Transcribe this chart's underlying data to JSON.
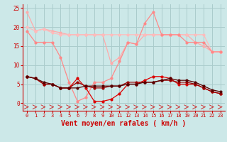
{
  "title": "",
  "xlabel": "Vent moyen/en rafales ( km/h )",
  "hours": [
    0,
    1,
    2,
    3,
    4,
    5,
    6,
    7,
    8,
    9,
    10,
    11,
    12,
    13,
    14,
    15,
    16,
    17,
    18,
    19,
    20,
    21,
    22,
    23
  ],
  "line1": [
    24,
    19,
    19.5,
    19,
    18.5,
    18,
    18,
    18,
    18,
    18,
    10.5,
    12,
    16,
    15.5,
    18,
    18,
    18,
    18,
    18,
    18,
    16,
    15,
    13.5,
    13.5
  ],
  "line2": [
    20,
    19,
    19.5,
    18.5,
    18,
    18,
    18,
    18,
    18,
    18,
    18,
    18,
    18,
    18,
    18,
    18,
    18,
    18,
    18,
    18,
    18,
    18,
    13.5,
    13.5
  ],
  "line3": [
    19,
    16,
    16,
    16,
    12,
    5.5,
    0.5,
    1.5,
    5.5,
    5.5,
    6.5,
    11,
    16,
    15.5,
    21,
    24,
    18,
    18,
    18,
    16,
    16,
    16,
    13.5,
    13.5
  ],
  "line4": [
    7,
    6.5,
    5,
    5,
    4,
    4,
    6.5,
    4,
    0.5,
    0.5,
    1,
    2.5,
    5,
    5,
    6,
    7,
    7,
    6.5,
    5,
    5,
    5,
    4,
    3,
    2.5
  ],
  "line5": [
    7,
    6.5,
    5,
    5,
    4,
    4,
    5.5,
    4.5,
    4,
    4,
    4.5,
    4.5,
    5.5,
    5.5,
    5.5,
    5.5,
    6,
    6,
    5.5,
    5.5,
    5,
    4,
    3,
    2.5
  ],
  "line6": [
    7,
    6.5,
    5.5,
    5,
    4,
    4,
    4,
    4.5,
    4.5,
    4.5,
    4.5,
    4.5,
    5,
    5,
    5.5,
    5.5,
    6,
    6.5,
    6,
    6,
    5.5,
    4.5,
    3.5,
    3
  ],
  "color1": "#ffaaaa",
  "color2": "#ffbbbb",
  "color3": "#ff8888",
  "color4": "#dd0000",
  "color5": "#990000",
  "color6": "#550000",
  "bg_color": "#cce8e8",
  "grid_color": "#aacccc",
  "axis_color": "#cc0000",
  "ylim": [
    -2,
    26
  ],
  "yticks": [
    0,
    5,
    10,
    15,
    20,
    25
  ],
  "arrow_color": "#cc3333"
}
